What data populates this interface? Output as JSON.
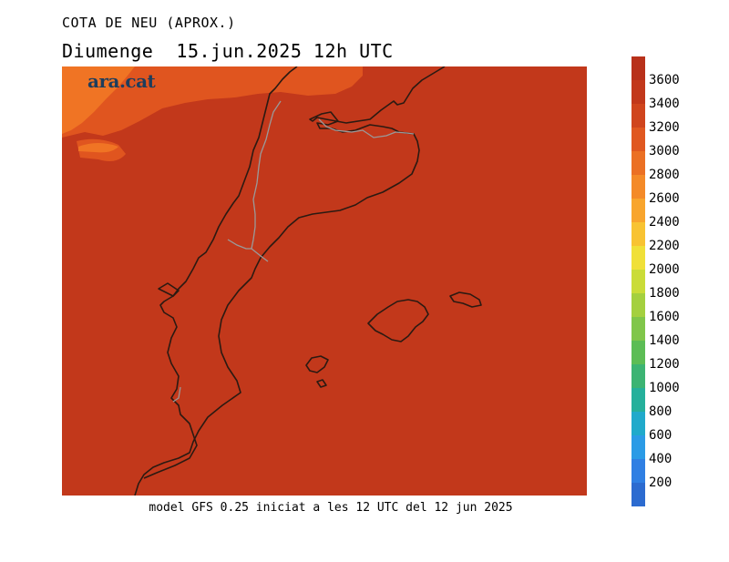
{
  "header": {
    "suptitle": "COTA DE NEU (APROX.)",
    "title": "Diumenge  15.jun.2025 12h UTC"
  },
  "brand": {
    "label": "ara.cat"
  },
  "footer": {
    "text": "model GFS 0.25 iniciat a les 12 UTC del 12 jun 2025"
  },
  "map": {
    "field_value": "≥3600",
    "field_color": "#c2381b",
    "higher_zone_color": "#e0551f",
    "highest_zone_color": "#f07424",
    "coast_color": "#2b1a12",
    "border_color": "#9a9a9a"
  },
  "colorbar": {
    "labels": [
      "200",
      "400",
      "600",
      "800",
      "1000",
      "1200",
      "1400",
      "1600",
      "1800",
      "2000",
      "2200",
      "2400",
      "2600",
      "2800",
      "3000",
      "3200",
      "3400",
      "3600"
    ],
    "colors": [
      "#2c6bd0",
      "#2f7fe3",
      "#2b9be6",
      "#20aacb",
      "#25b09b",
      "#3cb473",
      "#5cbd55",
      "#80c64a",
      "#a4d03f",
      "#cadc38",
      "#f0e038",
      "#f8c332",
      "#f8a52d",
      "#f48a28",
      "#eb7024",
      "#e05820",
      "#d0451d",
      "#c2381b",
      "#b8311a"
    ]
  }
}
